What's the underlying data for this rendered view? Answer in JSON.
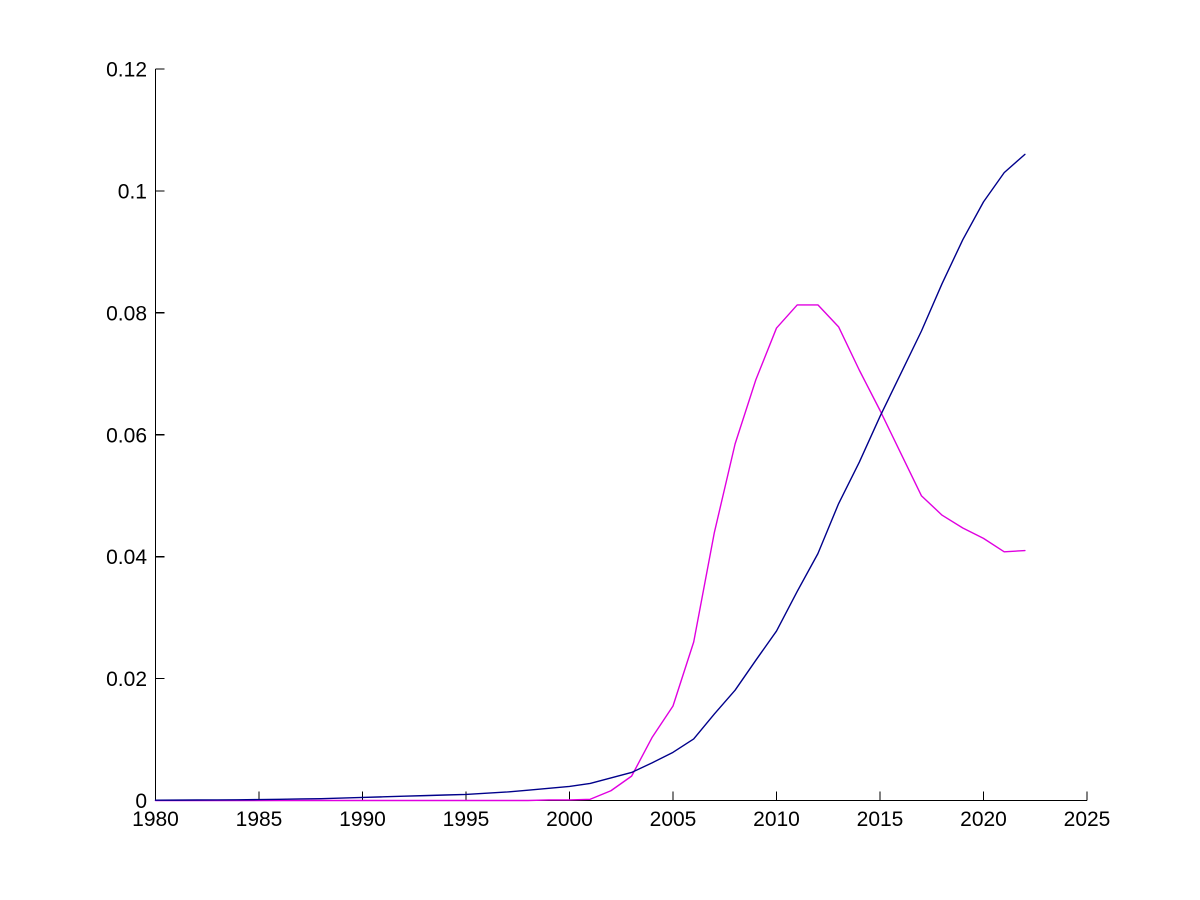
{
  "figure": {
    "background_color": "#ffffff",
    "axis_color": "#000000",
    "tick_label_color": "#000000"
  },
  "chart_data": {
    "type": "line",
    "title": "",
    "xlabel": "",
    "ylabel": "",
    "grid": false,
    "legend": null,
    "xlim": [
      1980,
      2025
    ],
    "ylim": [
      0,
      0.12
    ],
    "x_ticks": {
      "values": [
        1980,
        1985,
        1990,
        1995,
        2000,
        2005,
        2010,
        2015,
        2020,
        2025
      ],
      "labels": [
        "1980",
        "1985",
        "1990",
        "1995",
        "2000",
        "2005",
        "2010",
        "2015",
        "2020",
        "2025"
      ]
    },
    "y_ticks": {
      "values": [
        0,
        0.02,
        0.04,
        0.06,
        0.08,
        0.1,
        0.12
      ],
      "labels": [
        "0",
        "0.02",
        "0.04",
        "0.06",
        "0.08",
        "0.1",
        "0.12"
      ]
    },
    "x": [
      1980,
      1981,
      1982,
      1983,
      1984,
      1985,
      1986,
      1987,
      1988,
      1989,
      1990,
      1991,
      1992,
      1993,
      1994,
      1995,
      1996,
      1997,
      1998,
      1999,
      2000,
      2001,
      2002,
      2003,
      2004,
      2005,
      2006,
      2007,
      2008,
      2009,
      2010,
      2011,
      2012,
      2013,
      2014,
      2015,
      2016,
      2017,
      2018,
      2019,
      2020,
      2021,
      2022
    ],
    "series": [
      {
        "name": "magenta-curve",
        "color": "#E000E0",
        "values": [
          0,
          0,
          0,
          0,
          0,
          0,
          0,
          0,
          0,
          0,
          0,
          0,
          0,
          0,
          0,
          0,
          0,
          0,
          0,
          0.0001,
          0.0001,
          0.0002,
          0.0016,
          0.004,
          0.0104,
          0.0155,
          0.026,
          0.044,
          0.0585,
          0.069,
          0.0775,
          0.0813,
          0.0813,
          0.0777,
          0.0706,
          0.064,
          0.057,
          0.05,
          0.0468,
          0.0447,
          0.043,
          0.0408,
          0.041
        ]
      },
      {
        "name": "dark-blue-curve",
        "color": "#00008B",
        "values": [
          5e-05,
          6e-05,
          8e-05,
          0.0001,
          0.00012,
          0.00015,
          0.0002,
          0.00025,
          0.0003,
          0.0004,
          0.0005,
          0.0006,
          0.0007,
          0.0008,
          0.0009,
          0.001,
          0.0012,
          0.0014,
          0.0017,
          0.002,
          0.0023,
          0.0028,
          0.0037,
          0.0046,
          0.0062,
          0.0079,
          0.0101,
          0.0142,
          0.0181,
          0.023,
          0.0278,
          0.0343,
          0.0405,
          0.0487,
          0.0555,
          0.063,
          0.07,
          0.077,
          0.0848,
          0.092,
          0.0982,
          0.103,
          0.106
        ]
      }
    ]
  }
}
